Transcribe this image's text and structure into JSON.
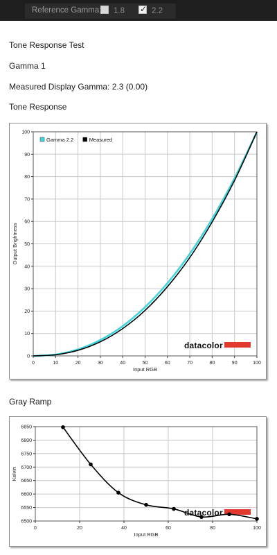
{
  "toolbar": {
    "reference_label": "Reference Gamma:",
    "options": [
      {
        "label": "1.8",
        "checked": false
      },
      {
        "label": "2.2",
        "checked": true
      }
    ]
  },
  "section_title": "Tone Response Test",
  "gamma_name": "Gamma 1",
  "measured_text": "Measured Display Gamma: 2.3 (0.00)",
  "tone_heading": "Tone Response",
  "gray_heading": "Gray Ramp",
  "logo_text": "datacolor",
  "colors": {
    "gamma_reference": "#40d8e0",
    "measured": "#000000",
    "logo_bar": "#e03a2e"
  },
  "chart_data": [
    {
      "type": "line",
      "xlabel": "Input RGB",
      "ylabel": "Output Brightness",
      "xlim": [
        0,
        100
      ],
      "ylim": [
        0,
        100
      ],
      "xticks": [
        0,
        10,
        20,
        30,
        40,
        50,
        60,
        70,
        80,
        90,
        100
      ],
      "yticks": [
        0,
        10,
        20,
        30,
        40,
        50,
        60,
        70,
        80,
        90,
        100
      ],
      "grid": true,
      "legend_position": "top-left",
      "series": [
        {
          "name": "Gamma 2.2",
          "color": "#40d8e0",
          "x": [
            0,
            10,
            20,
            30,
            40,
            50,
            60,
            70,
            80,
            90,
            100
          ],
          "y": [
            0,
            0.6,
            2.9,
            7.1,
            13.3,
            21.8,
            32.5,
            45.6,
            61.2,
            79.3,
            100
          ]
        },
        {
          "name": "Measured",
          "color": "#000000",
          "x": [
            0,
            10,
            20,
            30,
            40,
            50,
            60,
            70,
            80,
            90,
            100
          ],
          "y": [
            0,
            0.5,
            2.5,
            6.3,
            12.2,
            20.3,
            30.9,
            43.9,
            59.8,
            78.3,
            100
          ]
        }
      ]
    },
    {
      "type": "line",
      "xlabel": "Input RGB",
      "ylabel": "Kelvin",
      "xlim": [
        0,
        100
      ],
      "ylim": [
        6500,
        6850
      ],
      "xticks": [
        0,
        20,
        40,
        60,
        80,
        100
      ],
      "yticks": [
        6500,
        6550,
        6600,
        6650,
        6700,
        6750,
        6800,
        6850
      ],
      "grid": true,
      "series": [
        {
          "color": "#000000",
          "markers": true,
          "x": [
            12.5,
            25,
            37.5,
            50,
            62.5,
            75,
            87.5,
            100
          ],
          "y": [
            6848,
            6710,
            6605,
            6560,
            6545,
            6515,
            6525,
            6508
          ]
        }
      ]
    }
  ]
}
